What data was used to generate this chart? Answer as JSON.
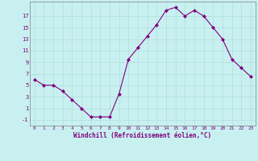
{
  "x": [
    0,
    1,
    2,
    3,
    4,
    5,
    6,
    7,
    8,
    9,
    10,
    11,
    12,
    13,
    14,
    15,
    16,
    17,
    18,
    19,
    20,
    21,
    22,
    23
  ],
  "y": [
    6,
    5,
    5,
    4,
    2.5,
    1,
    -0.5,
    -0.5,
    -0.5,
    3.5,
    9.5,
    11.5,
    13.5,
    15.5,
    18,
    18.5,
    17,
    18,
    17,
    15,
    13,
    9.5,
    8,
    6.5
  ],
  "line_color": "#800080",
  "marker_color": "#800080",
  "bg_color": "#c8f0f0",
  "grid_color": "#b0dede",
  "xlabel": "Windchill (Refroidissement éolien,°C)",
  "yticks": [
    -1,
    1,
    3,
    5,
    7,
    9,
    11,
    13,
    15,
    17
  ],
  "xticks": [
    0,
    1,
    2,
    3,
    4,
    5,
    6,
    7,
    8,
    9,
    10,
    11,
    12,
    13,
    14,
    15,
    16,
    17,
    18,
    19,
    20,
    21,
    22,
    23
  ],
  "xlim": [
    -0.5,
    23.5
  ],
  "ylim": [
    -2,
    19.5
  ]
}
